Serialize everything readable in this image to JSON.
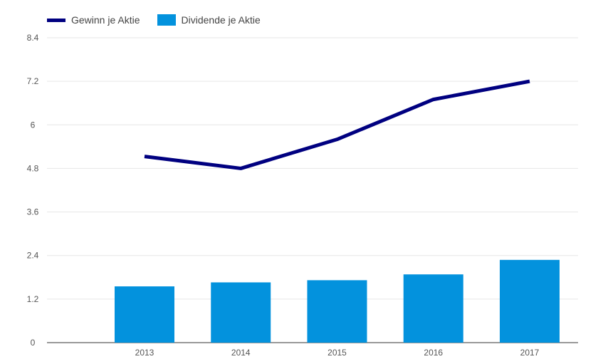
{
  "chart_data": {
    "type": "bar",
    "categories": [
      "2013",
      "2014",
      "2015",
      "2016",
      "2017"
    ],
    "series": [
      {
        "name": "Dividende je Aktie",
        "type": "bar",
        "color": "#0392dd",
        "values": [
          1.55,
          1.66,
          1.72,
          1.88,
          2.28
        ]
      },
      {
        "name": "Gewinn je Aktie",
        "type": "line",
        "color": "#000080",
        "values": [
          5.13,
          4.8,
          5.6,
          6.7,
          7.2
        ]
      }
    ],
    "title": "",
    "xlabel": "",
    "ylabel": "",
    "ylim": [
      0,
      8.4
    ],
    "yticks": [
      "0",
      "1.2",
      "2.4",
      "3.6",
      "4.8",
      "6",
      "7.2",
      "8.4"
    ],
    "grid": true,
    "legend_position": "top-left"
  }
}
